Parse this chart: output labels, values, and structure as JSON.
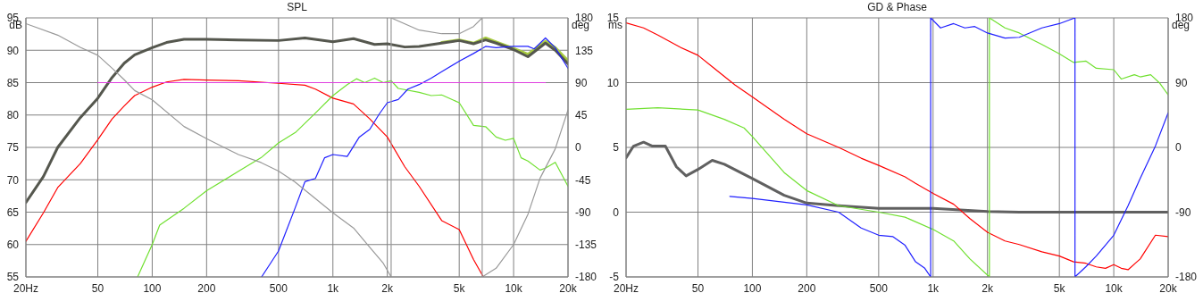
{
  "chart_data": [
    {
      "type": "line",
      "title": "SPL",
      "ylabel": "dB",
      "y2label": "deg",
      "log": "x",
      "grid": true,
      "xlim": [
        20,
        20000
      ],
      "xticks": [
        {
          "value": 20,
          "label": "20Hz"
        },
        50,
        100,
        200,
        500,
        {
          "value": 1000,
          "label": "1k"
        },
        {
          "value": 2000,
          "label": "2k"
        },
        {
          "value": 5000,
          "label": "5k"
        },
        {
          "value": 10000,
          "label": "10k"
        },
        {
          "value": 20000,
          "label": "20k"
        }
      ],
      "ylim": [
        55,
        95
      ],
      "yticks": [
        55,
        60,
        65,
        70,
        75,
        80,
        85,
        90,
        95
      ],
      "y2lim": [
        -180,
        180
      ],
      "y2ticks": [
        -180,
        -135,
        -90,
        -45,
        0,
        45,
        90,
        135,
        180
      ],
      "series": [
        {
          "color": "#a8cc40",
          "x": [
            4000,
            5000,
            6000,
            7000,
            8000,
            10000,
            12000,
            15000,
            17000,
            20000
          ],
          "values": [
            91.2,
            91.6,
            91.1,
            91.9,
            91.3,
            90.3,
            89.4,
            91.4,
            90.4,
            88.4
          ]
        },
        {
          "color": "#55574e",
          "x": [
            20,
            25,
            30,
            40,
            50,
            60,
            70,
            80,
            100,
            120,
            150,
            200,
            300,
            500,
            700,
            1000,
            1300,
            1700,
            2000,
            2500,
            3000,
            4000,
            5000,
            6000,
            7000,
            8000,
            10000,
            12000,
            15000,
            17000,
            20000
          ],
          "values": [
            66.5,
            70.5,
            75,
            79.6,
            82.6,
            85.8,
            88,
            89.3,
            90.4,
            91.2,
            91.7,
            91.7,
            91.6,
            91.5,
            91.9,
            91.3,
            91.8,
            90.9,
            91,
            90.5,
            90.6,
            91.1,
            91.5,
            91,
            91.6,
            91.1,
            90.1,
            89,
            91.1,
            90,
            87.9
          ]
        },
        {
          "color": "#ff0000",
          "x": [
            20,
            25,
            30,
            40,
            50,
            60,
            70,
            80,
            100,
            120,
            150,
            200,
            300,
            500,
            700,
            800,
            1000,
            1300,
            1600,
            2000,
            2500,
            3000,
            4000,
            5000,
            6000,
            6800
          ],
          "values": [
            60.5,
            64.9,
            68.8,
            72.5,
            76.2,
            79.4,
            81.4,
            83,
            84.3,
            85.1,
            85.5,
            85.4,
            85.3,
            84.9,
            84.6,
            84,
            82.6,
            81.7,
            79.4,
            76.6,
            72,
            69,
            63.7,
            62.3,
            57.7,
            55
          ]
        },
        {
          "color": "#70e030",
          "x": [
            83,
            100,
            110,
            150,
            200,
            300,
            400,
            500,
            620,
            800,
            1000,
            1200,
            1350,
            1500,
            1700,
            1900,
            2100,
            2300,
            3000,
            3500,
            4000,
            5000,
            6000,
            7000,
            8000,
            9000,
            10000,
            11000,
            12000,
            14000,
            15000,
            17000,
            20000
          ],
          "values": [
            55,
            60,
            63,
            65.6,
            68.3,
            71.3,
            73.4,
            75.7,
            77.3,
            80.3,
            83,
            84.7,
            85.6,
            85,
            85.7,
            85,
            85.3,
            84.1,
            83.5,
            83,
            83.1,
            81.9,
            78.4,
            78.2,
            76.6,
            76.1,
            76.4,
            73.4,
            72.9,
            71.5,
            71.8,
            72.7,
            69
          ]
        },
        {
          "color": "#2020ff",
          "x": [
            403,
            500,
            617,
            700,
            800,
            900,
            1000,
            1200,
            1400,
            1600,
            1800,
            2000,
            2300,
            2600,
            3000,
            3500,
            4000,
            5000,
            6000,
            7000,
            8000,
            10000,
            12000,
            13000,
            15000,
            17000,
            20000
          ],
          "values": [
            55,
            59,
            65.6,
            69.7,
            70.2,
            73.4,
            73.9,
            73.6,
            76.6,
            77.8,
            80.1,
            81.9,
            82.4,
            84,
            84.7,
            85.7,
            86.7,
            88.3,
            89.5,
            90.6,
            90.4,
            90.6,
            90.6,
            90.2,
            91.9,
            90.4,
            87.2
          ]
        },
        {
          "color": "#e040e0",
          "x": [
            50,
            15000
          ],
          "values": [
            85,
            85
          ]
        },
        {
          "color": "#999999",
          "axis": "y2",
          "x": [
            20,
            30,
            40,
            50,
            60,
            70,
            80,
            100,
            150,
            200,
            300,
            400,
            500,
            617,
            1000,
            1300,
            1600,
            1900,
            2100,
            2100,
            3000,
            4000,
            5000,
            6000,
            6700,
            6700,
            8000,
            10000,
            12000,
            14000,
            17000,
            20000
          ],
          "values": [
            172,
            156,
            139,
            128,
            110,
            94,
            79,
            66,
            29,
            12,
            -10,
            -21,
            -33,
            -48,
            -91,
            -112,
            -139,
            -161,
            -180,
            180,
            163,
            158,
            158,
            168,
            180,
            -180,
            -168,
            -135,
            -93,
            -43,
            -2,
            52
          ]
        }
      ]
    },
    {
      "type": "line",
      "title": "GD & Phase",
      "ylabel": "ms",
      "y2label": "deg",
      "log": "x",
      "grid": true,
      "xlim": [
        20,
        20000
      ],
      "xticks": [
        {
          "value": 20,
          "label": "20Hz"
        },
        50,
        100,
        200,
        500,
        {
          "value": 1000,
          "label": "1k"
        },
        {
          "value": 2000,
          "label": "2k"
        },
        {
          "value": 5000,
          "label": "5k"
        },
        {
          "value": 10000,
          "label": "10k"
        },
        {
          "value": 20000,
          "label": "20k"
        }
      ],
      "ylim": [
        -5,
        15
      ],
      "yticks": [
        -5,
        0,
        5,
        10,
        15
      ],
      "y2lim": [
        -180,
        180
      ],
      "y2ticks": [
        -180,
        -90,
        0,
        90,
        180
      ],
      "series": [
        {
          "color": "#606060",
          "x": [
            20,
            22,
            25,
            28,
            33,
            38,
            43,
            50,
            60,
            70,
            100,
            150,
            200,
            300,
            500,
            700,
            1000,
            2000,
            3000,
            5000,
            10000,
            20000
          ],
          "values": [
            4.2,
            5.1,
            5.4,
            5.1,
            5.1,
            3.5,
            2.8,
            3.3,
            4,
            3.7,
            2.6,
            1.3,
            0.7,
            0.5,
            0.3,
            0.3,
            0.3,
            0.05,
            0,
            0,
            0,
            0
          ]
        },
        {
          "color": "#ff0000",
          "axis": "y2",
          "x": [
            20,
            25,
            30,
            40,
            50,
            60,
            80,
            100,
            150,
            200,
            300,
            400,
            500,
            700,
            800,
            1000,
            1300,
            1600,
            2000,
            2500,
            3000,
            4000,
            5000,
            6000,
            7000,
            8000,
            9000,
            10000,
            11000,
            12000,
            14000,
            17000,
            20000
          ],
          "values": [
            173,
            166,
            156,
            139,
            128,
            112,
            87,
            70,
            39,
            19,
            0,
            -15,
            -25,
            -41,
            -50,
            -64,
            -79,
            -99,
            -118,
            -130,
            -135,
            -145,
            -151,
            -159,
            -161,
            -166,
            -168,
            -163,
            -168,
            -170,
            -155,
            -122,
            -124
          ]
        },
        {
          "color": "#70e030",
          "axis": "y2",
          "x": [
            20,
            30,
            50,
            70,
            90,
            100,
            150,
            200,
            300,
            500,
            700,
            1000,
            1300,
            1600,
            2050,
            2050,
            2500,
            3000,
            4000,
            5000,
            6000,
            7000,
            8000,
            10000,
            11000,
            13000,
            14000,
            16000,
            18000,
            20000
          ],
          "values": [
            53,
            55,
            52,
            39,
            27,
            15,
            -35,
            -60,
            -81,
            -90,
            -97,
            -114,
            -130,
            -155,
            -180,
            180,
            166,
            159,
            143,
            130,
            118,
            120,
            110,
            108,
            95,
            101,
            98,
            101,
            89,
            73
          ]
        },
        {
          "color": "#2020ff",
          "axis": "y2",
          "x": [
            75,
            100,
            200,
            300,
            400,
            500,
            600,
            700,
            800,
            900,
            970,
            970,
            1100,
            1300,
            1500,
            1700,
            2000,
            2500,
            3000,
            4000,
            5000,
            6100,
            6100,
            7000,
            8000,
            10000,
            12000,
            14000,
            17000,
            20000
          ],
          "values": [
            -68,
            -71,
            -80,
            -90,
            -112,
            -122,
            -124,
            -136,
            -159,
            -168,
            -180,
            180,
            166,
            172,
            166,
            168,
            159,
            152,
            153,
            166,
            172,
            180,
            -180,
            -166,
            -151,
            -122,
            -81,
            -43,
            2,
            48
          ]
        }
      ]
    }
  ]
}
